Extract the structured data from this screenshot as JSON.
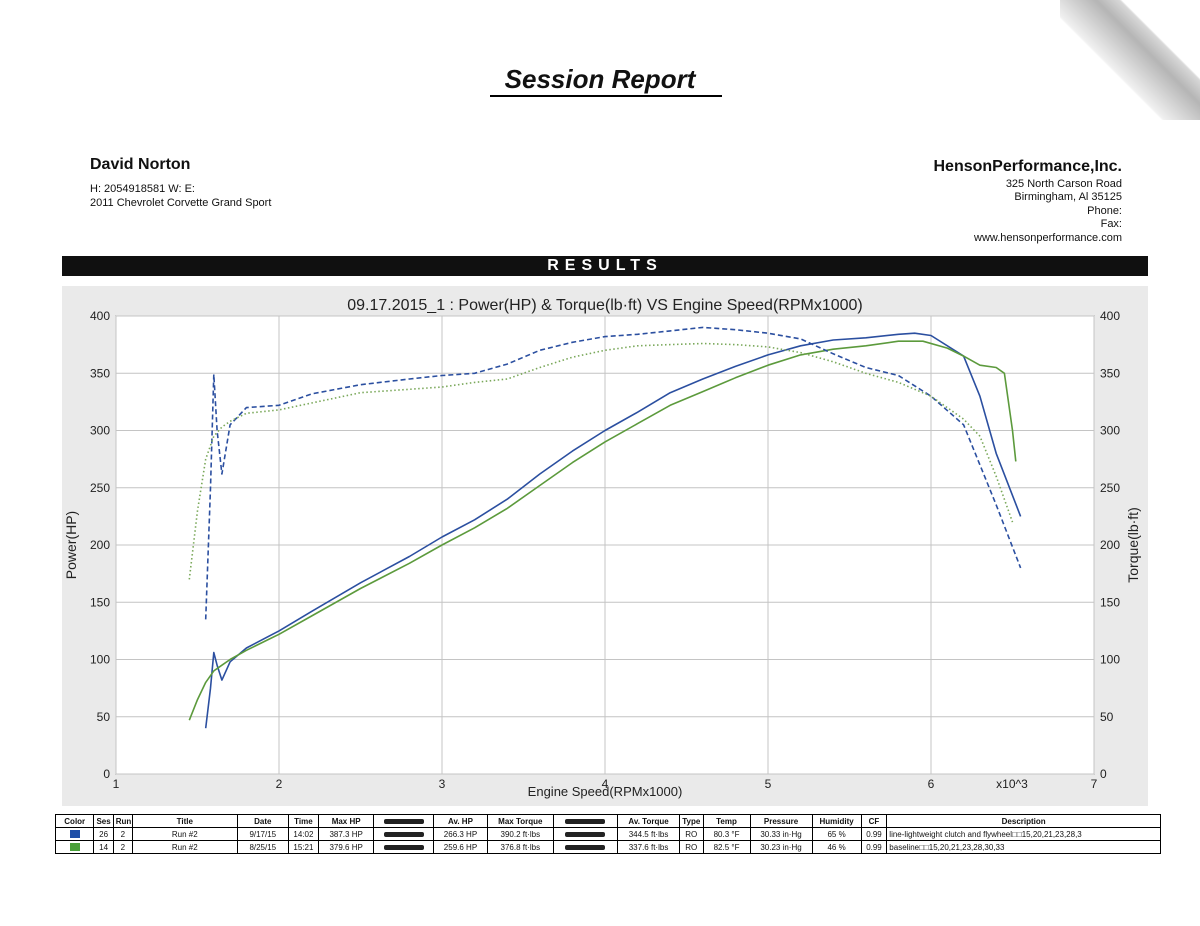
{
  "header": {
    "title": "Session Report",
    "client_name": "David Norton",
    "client_contact": "H:  2054918581    W:        E:",
    "client_vehicle": "2011 Chevrolet Corvette Grand Sport",
    "shop_name": "HensonPerformance,Inc.",
    "shop_address1": "325 North Carson Road",
    "shop_address2": "Birmingham, Al 35125",
    "shop_phone": "Phone:",
    "shop_fax": "Fax:",
    "shop_web": "www.hensonperformance.com",
    "results_label": "RESULTS"
  },
  "chart_data": {
    "type": "line",
    "title": "09.17.2015_1 : Power(HP) & Torque(lb·ft) VS Engine Speed(RPMx1000)",
    "xlabel": "Engine Speed(RPMx1000)",
    "ylabel": "Power(HP)",
    "y2label": "Torque(lb·ft)",
    "x_multiplier_label": "x10^3",
    "xlim": [
      1,
      7
    ],
    "ylim": [
      0,
      400
    ],
    "y2lim": [
      0,
      400
    ],
    "x_ticks": [
      "1",
      "2",
      "3",
      "4",
      "5",
      "6",
      "7"
    ],
    "y_ticks": [
      "0",
      "50",
      "100",
      "150",
      "200",
      "250",
      "300",
      "350",
      "400"
    ],
    "grid": true,
    "series": [
      {
        "name": "Run #2 (26) Power",
        "color": "#2b4fa0",
        "dash": "solid",
        "x": [
          1.55,
          1.58,
          1.6,
          1.62,
          1.65,
          1.7,
          1.8,
          2.0,
          2.2,
          2.5,
          2.8,
          3.0,
          3.2,
          3.4,
          3.6,
          3.8,
          4.0,
          4.2,
          4.4,
          4.6,
          4.8,
          5.0,
          5.2,
          5.4,
          5.6,
          5.8,
          5.9,
          6.0,
          6.2,
          6.3,
          6.4,
          6.55
        ],
        "y": [
          40,
          75,
          106,
          95,
          82,
          98,
          110,
          125,
          142,
          167,
          190,
          207,
          222,
          240,
          262,
          282,
          300,
          316,
          333,
          345,
          356,
          366,
          374,
          379,
          381,
          384,
          385,
          383,
          365,
          330,
          280,
          225
        ]
      },
      {
        "name": "Run #2 (14) Power",
        "color": "#5c9a3c",
        "dash": "solid",
        "x": [
          1.45,
          1.5,
          1.55,
          1.6,
          1.65,
          1.7,
          1.8,
          2.0,
          2.2,
          2.5,
          2.8,
          3.0,
          3.2,
          3.4,
          3.6,
          3.8,
          4.0,
          4.2,
          4.4,
          4.6,
          4.8,
          5.0,
          5.2,
          5.4,
          5.6,
          5.8,
          5.95,
          6.1,
          6.2,
          6.3,
          6.4,
          6.45,
          6.5,
          6.52
        ],
        "y": [
          47,
          65,
          80,
          90,
          95,
          100,
          108,
          122,
          138,
          162,
          184,
          200,
          215,
          232,
          252,
          272,
          290,
          306,
          322,
          334,
          346,
          357,
          366,
          371,
          374,
          378,
          378,
          372,
          365,
          357,
          355,
          350,
          300,
          273
        ]
      },
      {
        "name": "Run #2 (26) Torque",
        "color": "#2b4fa0",
        "dash": "dashed",
        "x": [
          1.55,
          1.58,
          1.6,
          1.62,
          1.65,
          1.7,
          1.8,
          2.0,
          2.2,
          2.5,
          2.8,
          3.0,
          3.2,
          3.4,
          3.6,
          3.8,
          4.0,
          4.2,
          4.4,
          4.6,
          4.8,
          5.0,
          5.2,
          5.4,
          5.6,
          5.8,
          6.0,
          6.2,
          6.3,
          6.4,
          6.55
        ],
        "y": [
          135,
          250,
          349,
          300,
          262,
          305,
          320,
          322,
          332,
          340,
          345,
          348,
          350,
          358,
          370,
          377,
          382,
          384,
          387,
          390,
          388,
          385,
          380,
          367,
          355,
          348,
          330,
          305,
          270,
          235,
          180
        ]
      },
      {
        "name": "Run #2 (14) Torque",
        "color": "#7aa85a",
        "dash": "dotted",
        "x": [
          1.45,
          1.5,
          1.55,
          1.6,
          1.65,
          1.7,
          1.8,
          2.0,
          2.2,
          2.5,
          2.8,
          3.0,
          3.2,
          3.4,
          3.6,
          3.8,
          4.0,
          4.2,
          4.4,
          4.6,
          4.8,
          5.0,
          5.2,
          5.4,
          5.6,
          5.8,
          6.0,
          6.2,
          6.3,
          6.4,
          6.5
        ],
        "y": [
          170,
          230,
          275,
          295,
          303,
          308,
          315,
          318,
          324,
          333,
          336,
          338,
          342,
          345,
          355,
          364,
          370,
          374,
          375,
          376,
          375,
          373,
          368,
          360,
          350,
          342,
          330,
          310,
          295,
          260,
          220
        ]
      }
    ]
  },
  "table": {
    "headers": [
      "Color",
      "Ses",
      "Run",
      "Title",
      "Date",
      "Time",
      "Max HP",
      "",
      "Av. HP",
      "Max Torque",
      "",
      "Av. Torque",
      "Type",
      "Temp",
      "Pressure",
      "Humidity",
      "CF",
      "Description"
    ],
    "rows": [
      {
        "color": "#1f4fa8",
        "cells": [
          "26",
          "2",
          "Run #2",
          "9/17/15",
          "14:02",
          "387.3 HP",
          "",
          "266.3 HP",
          "390.2 ft·lbs",
          "",
          "344.5 ft·lbs",
          "RO",
          "80.3 °F",
          "30.33 in·Hg",
          "65 %",
          "0.99",
          "line-lightweight clutch and flywheel□□15,20,21,23,28,3"
        ]
      },
      {
        "color": "#4aa03a",
        "cells": [
          "14",
          "2",
          "Run #2",
          "8/25/15",
          "15:21",
          "379.6 HP",
          "",
          "259.6 HP",
          "376.8 ft·lbs",
          "",
          "337.6 ft·lbs",
          "RO",
          "82.5 °F",
          "30.23 in·Hg",
          "46 %",
          "0.99",
          "baseline□□15,20,21,23,28,30,33"
        ]
      }
    ]
  }
}
